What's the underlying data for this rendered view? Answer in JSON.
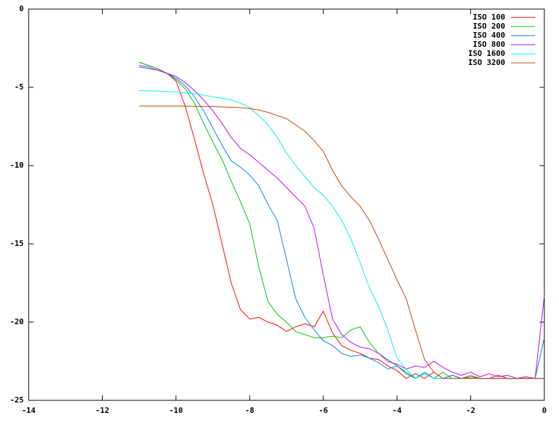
{
  "chart_data": {
    "type": "line",
    "x": [
      -11,
      -10.75,
      -10.5,
      -10.25,
      -10,
      -9.75,
      -9.5,
      -9.25,
      -9,
      -8.75,
      -8.5,
      -8.25,
      -8,
      -7.75,
      -7.5,
      -7.25,
      -7,
      -6.75,
      -6.5,
      -6.25,
      -6,
      -5.75,
      -5.5,
      -5.25,
      -5,
      -4.75,
      -4.5,
      -4.25,
      -4,
      -3.75,
      -3.5,
      -3.25,
      -3,
      -2.75,
      -2.5,
      -2.25,
      -2,
      -1.75,
      -1.5,
      -1.25,
      -1,
      -0.75,
      -0.5,
      -0.25,
      0
    ],
    "series": [
      {
        "name": "ISO 100",
        "color": "#ff0000",
        "values": [
          -3.4,
          -3.6,
          -3.8,
          -4.1,
          -4.6,
          -6.2,
          -8.3,
          -10.5,
          -12.5,
          -15,
          -17.5,
          -19.2,
          -19.8,
          -19.7,
          -20,
          -20.2,
          -20.6,
          -20.3,
          -20.1,
          -20.3,
          -19.3,
          -20.7,
          -21.5,
          -21.8,
          -22,
          -22.3,
          -22.4,
          -22.8,
          -23.1,
          -23.6,
          -23.3,
          -23.6,
          -23.2,
          -23.6,
          -23.4,
          -23.6,
          -23.5,
          -23.6,
          -23.6,
          -23.4,
          -23.6,
          -23.6,
          -23.5,
          -23.6,
          -23.6
        ]
      },
      {
        "name": "ISO 200",
        "color": "#00c000",
        "values": [
          -3.4,
          -3.6,
          -3.8,
          -4.1,
          -4.5,
          -5.1,
          -6,
          -7.3,
          -8.5,
          -9.6,
          -11,
          -12.3,
          -13.7,
          -16.5,
          -18.7,
          -19.5,
          -20,
          -20.6,
          -20.8,
          -21,
          -21,
          -20.9,
          -21,
          -20.5,
          -20.3,
          -21.3,
          -22,
          -22.4,
          -22.8,
          -23.2,
          -23.6,
          -23.3,
          -23.6,
          -23.2,
          -23.6,
          -23.6,
          -23.4,
          -23.6,
          -23.6,
          -23.6,
          -23.6,
          -23.6,
          -23.6,
          -23.6,
          -23.6
        ]
      },
      {
        "name": "ISO 400",
        "color": "#0080ff",
        "values": [
          -3.6,
          -3.7,
          -3.9,
          -4.1,
          -4.4,
          -4.9,
          -5.6,
          -6.5,
          -7.6,
          -8.7,
          -9.7,
          -10.1,
          -10.6,
          -11.3,
          -12.5,
          -13.5,
          -16,
          -18.5,
          -19.7,
          -20.5,
          -21.2,
          -21.5,
          -22,
          -22.2,
          -22.1,
          -22.3,
          -22.6,
          -23,
          -22.8,
          -23.3,
          -23.6,
          -23.2,
          -23.6,
          -23.6,
          -23.4,
          -23.6,
          -23.6,
          -23.6,
          -23.6,
          -23.6,
          -23.6,
          -23.6,
          -23.6,
          -23.6,
          -21
        ]
      },
      {
        "name": "ISO 800",
        "color": "#c000ff",
        "values": [
          -3.7,
          -3.8,
          -3.9,
          -4.1,
          -4.3,
          -4.7,
          -5.2,
          -5.8,
          -6.5,
          -7.3,
          -8.2,
          -8.9,
          -9.3,
          -9.8,
          -10.3,
          -10.8,
          -11.4,
          -12,
          -12.6,
          -14,
          -17,
          -19.8,
          -20.8,
          -21.3,
          -21.6,
          -21.7,
          -22,
          -22.5,
          -22.7,
          -23,
          -22.8,
          -22.9,
          -22.5,
          -22.9,
          -23.2,
          -23.4,
          -23.2,
          -23.5,
          -23.3,
          -23.5,
          -23.4,
          -23.6,
          -23.5,
          -23.6,
          -18.3
        ]
      },
      {
        "name": "ISO 1600",
        "color": "#00eeee",
        "values": [
          -5.2,
          -5.22,
          -5.25,
          -5.27,
          -5.3,
          -5.35,
          -5.4,
          -5.5,
          -5.6,
          -5.7,
          -5.8,
          -6,
          -6.3,
          -6.8,
          -7.4,
          -8.2,
          -9.2,
          -10,
          -10.7,
          -11.4,
          -11.9,
          -12.6,
          -13.5,
          -14.7,
          -16.2,
          -17.8,
          -19,
          -20.5,
          -22.3,
          -23,
          -23.6,
          -23.3,
          -23.6,
          -23.6,
          -23.6,
          -23.6,
          -23.6,
          -23.6,
          -23.6,
          -23.6,
          -23.6,
          -23.6,
          -23.6,
          -23.6,
          -23.6
        ]
      },
      {
        "name": "ISO 3200",
        "color": "#c04000",
        "values": [
          -6.2,
          -6.2,
          -6.2,
          -6.2,
          -6.2,
          -6.2,
          -6.22,
          -6.22,
          -6.23,
          -6.25,
          -6.27,
          -6.3,
          -6.35,
          -6.45,
          -6.6,
          -6.8,
          -7,
          -7.4,
          -7.8,
          -8.4,
          -9.1,
          -10.3,
          -11.3,
          -12,
          -12.6,
          -13.5,
          -14.7,
          -16,
          -17.3,
          -18.5,
          -20.5,
          -22.4,
          -23.2,
          -23.6,
          -23.6,
          -23.6,
          -23.6,
          -23.6,
          -23.6,
          -23.6,
          -23.6,
          -23.6,
          -23.6,
          -23.6,
          -23.6
        ]
      }
    ],
    "xlim": [
      -14,
      0
    ],
    "ylim": [
      -25,
      0
    ],
    "xticks": [
      -14,
      -12,
      -10,
      -8,
      -6,
      -4,
      -2,
      0
    ],
    "yticks": [
      -25,
      -20,
      -15,
      -10,
      -5,
      0
    ],
    "legend": "top-right"
  }
}
